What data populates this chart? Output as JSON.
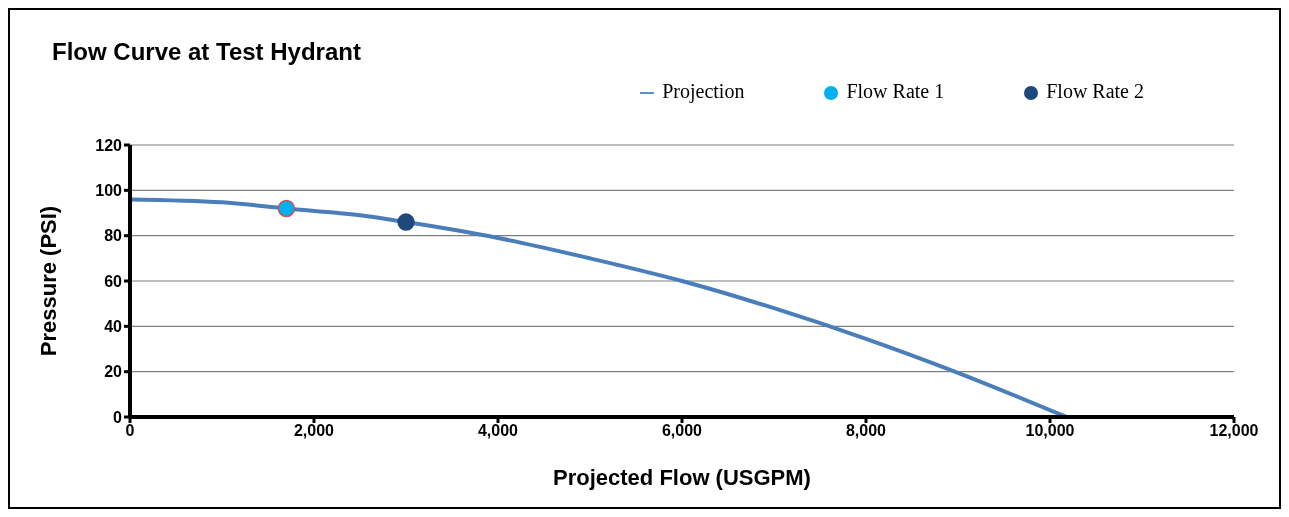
{
  "chart_data": {
    "type": "line",
    "title": "Flow Curve at Test Hydrant",
    "xlabel": "Projected Flow (USGPM)",
    "ylabel": "Pressure (PSI)",
    "series": [
      {
        "name": "Projection",
        "color": "#4a7ebb",
        "marker": "none",
        "x": [
          0,
          1000,
          1700,
          2500,
          3000,
          4000,
          5000,
          6000,
          7000,
          8000,
          9000,
          10180
        ],
        "values": [
          96,
          94.7,
          92,
          89,
          86,
          79,
          70,
          60,
          48,
          34.5,
          19.5,
          0
        ]
      },
      {
        "name": "Flow Rate 1",
        "type": "scatter",
        "color": "#00b0f0",
        "marker": "circle",
        "x": [
          1700
        ],
        "values": [
          92
        ]
      },
      {
        "name": "Flow Rate 2",
        "type": "scatter",
        "color": "#1f497d",
        "marker": "circle",
        "x": [
          3000
        ],
        "values": [
          86
        ]
      }
    ],
    "xlim": [
      0,
      12000
    ],
    "xticks": [
      0,
      {
        "value": 2000,
        "label": "2,000"
      },
      {
        "value": 4000,
        "label": "4,000"
      },
      {
        "value": 6000,
        "label": "6,000"
      },
      {
        "value": 8000,
        "label": "8,000"
      },
      {
        "value": 10000,
        "label": "10,000"
      },
      {
        "value": 12000,
        "label": "12,000"
      }
    ],
    "ylim": [
      0,
      120
    ],
    "yticks": [
      0,
      20,
      40,
      60,
      80,
      100,
      120
    ],
    "grid": "y",
    "legend": "top right",
    "line_style": "solid"
  }
}
